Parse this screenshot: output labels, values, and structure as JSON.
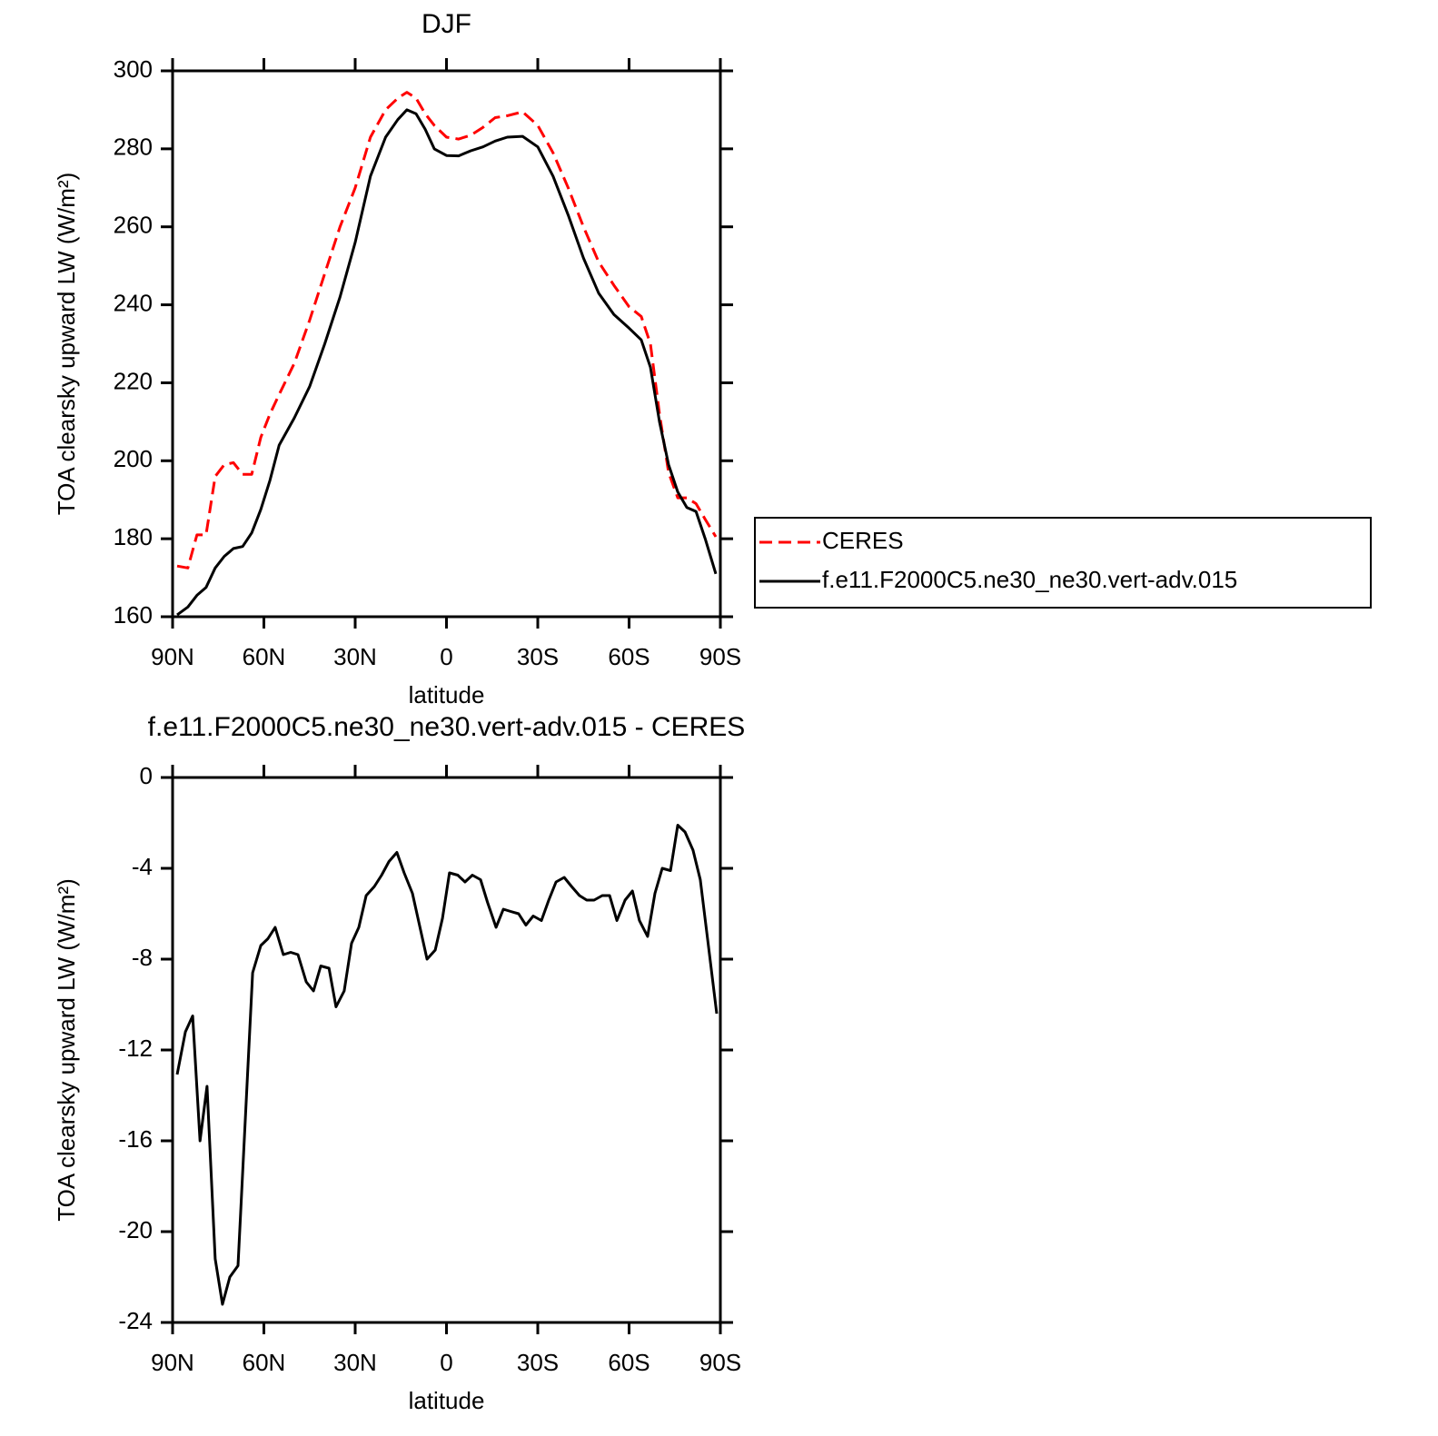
{
  "chart_data": [
    {
      "type": "line",
      "title": "DJF",
      "xlabel": "latitude",
      "ylabel": "TOA clearsky upward LW (W/m²)",
      "x": [
        88.5,
        85,
        82,
        79,
        76,
        73,
        70,
        67,
        64,
        61,
        58,
        55,
        50,
        45,
        40,
        35,
        30,
        25,
        20,
        16,
        13,
        10,
        7,
        4,
        0,
        -4,
        -8,
        -12,
        -16,
        -20,
        -25,
        -30,
        -35,
        -40,
        -45,
        -50,
        -55,
        -60,
        -64,
        -67,
        -70,
        -73,
        -76,
        -79,
        -82,
        -85,
        -88.5
      ],
      "series": [
        {
          "name": "CERES",
          "color": "#ff0000",
          "style": "dashed",
          "values": [
            173,
            172.5,
            181,
            181,
            196,
            199,
            199.5,
            196.5,
            196.5,
            206,
            212,
            217,
            225,
            236,
            248,
            260,
            270,
            283,
            290,
            293,
            294.5,
            293,
            289,
            286,
            283,
            282.5,
            283.5,
            285.5,
            288,
            288.5,
            289.5,
            286,
            279,
            270,
            260,
            251,
            245,
            239.5,
            237,
            230,
            212,
            197,
            190.5,
            190.5,
            189,
            185,
            180.5
          ]
        },
        {
          "name": "f.e11.F2000C5.ne30_ne30.vert-adv.015",
          "color": "#000000",
          "style": "solid",
          "values": [
            160.5,
            162.5,
            165.5,
            167.5,
            172.5,
            175.5,
            177.5,
            178,
            181.5,
            187.5,
            195,
            204,
            211,
            219,
            230,
            242,
            256,
            273,
            283,
            287.5,
            290,
            289,
            285,
            280,
            278.3,
            278.2,
            279.5,
            280.5,
            282,
            283,
            283.2,
            280.5,
            273,
            263,
            252,
            243,
            237.5,
            234,
            231,
            224,
            210,
            199,
            192,
            188,
            187,
            180,
            171
          ]
        }
      ],
      "xlim": [
        90,
        -90
      ],
      "xticks": [
        {
          "value": 90,
          "label": "90N"
        },
        {
          "value": 60,
          "label": "60N"
        },
        {
          "value": 30,
          "label": "30N"
        },
        0,
        {
          "value": -30,
          "label": "30S"
        },
        {
          "value": -60,
          "label": "60S"
        },
        {
          "value": -90,
          "label": "90S"
        }
      ],
      "ylim": [
        160,
        300
      ],
      "yticks": [
        160,
        180,
        200,
        220,
        240,
        260,
        280,
        300
      ],
      "legend": "outside-right"
    },
    {
      "type": "line",
      "title": "f.e11.F2000C5.ne30_ne30.vert-adv.015 - CERES",
      "xlabel": "latitude",
      "ylabel": "TOA clearsky upward LW (W/m²)",
      "x": [
        88.5,
        85.8,
        83.4,
        81.0,
        78.7,
        76.0,
        73.6,
        71.2,
        68.5,
        63.7,
        61.0,
        58.7,
        56.3,
        53.6,
        51.2,
        48.8,
        46.1,
        43.7,
        41.3,
        38.6,
        36.3,
        33.6,
        31.2,
        28.8,
        26.4,
        23.7,
        21.3,
        18.9,
        16.3,
        13.9,
        11.2,
        6.4,
        3.7,
        1.3,
        -1.0,
        -3.7,
        -6.1,
        -8.5,
        -11.2,
        -13.5,
        -16.3,
        -18.7,
        -21.1,
        -23.7,
        -26.1,
        -28.5,
        -31.2,
        -33.6,
        -36.0,
        -38.7,
        -41.1,
        -43.7,
        -46.1,
        -48.5,
        -51.2,
        -53.6,
        -56.0,
        -58.7,
        -61.1,
        -63.4,
        -66.1,
        -68.5,
        -70.9,
        -73.6,
        -76.0,
        -78.4,
        -81.0,
        -83.4,
        -85.8,
        -88.8
      ],
      "values": [
        -13.08,
        -11.2,
        -10.5,
        -16.0,
        -13.6,
        -21.2,
        -23.2,
        -22.0,
        -21.5,
        -8.6,
        -7.4,
        -7.1,
        -6.6,
        -7.8,
        -7.7,
        -7.8,
        -9.0,
        -9.4,
        -8.3,
        -8.4,
        -10.1,
        -9.4,
        -7.3,
        -6.6,
        -5.2,
        -4.8,
        -4.3,
        -3.7,
        -3.3,
        -4.2,
        -5.1,
        -8.0,
        -7.6,
        -6.2,
        -4.2,
        -4.3,
        -4.6,
        -4.3,
        -4.5,
        -5.5,
        -6.6,
        -5.8,
        -5.9,
        -6.0,
        -6.5,
        -6.1,
        -6.3,
        -5.4,
        -4.6,
        -4.4,
        -4.8,
        -5.2,
        -5.4,
        -5.4,
        -5.2,
        -5.2,
        -6.3,
        -5.4,
        -5.0,
        -6.3,
        -7.0,
        -5.1,
        -4.0,
        -4.1,
        -2.1,
        -2.4,
        -3.2,
        -4.5,
        -7.1,
        -10.4
      ],
      "color": "#000000",
      "xlim": [
        90,
        -90
      ],
      "xticks": [
        {
          "value": 90,
          "label": "90N"
        },
        {
          "value": 60,
          "label": "60N"
        },
        {
          "value": 30,
          "label": "30N"
        },
        0,
        {
          "value": -30,
          "label": "30S"
        },
        {
          "value": -60,
          "label": "60S"
        },
        {
          "value": -90,
          "label": "90S"
        }
      ],
      "ylim": [
        -24,
        0
      ],
      "yticks": [
        -24,
        -20,
        -16,
        -12,
        -8,
        -4,
        0
      ]
    }
  ]
}
